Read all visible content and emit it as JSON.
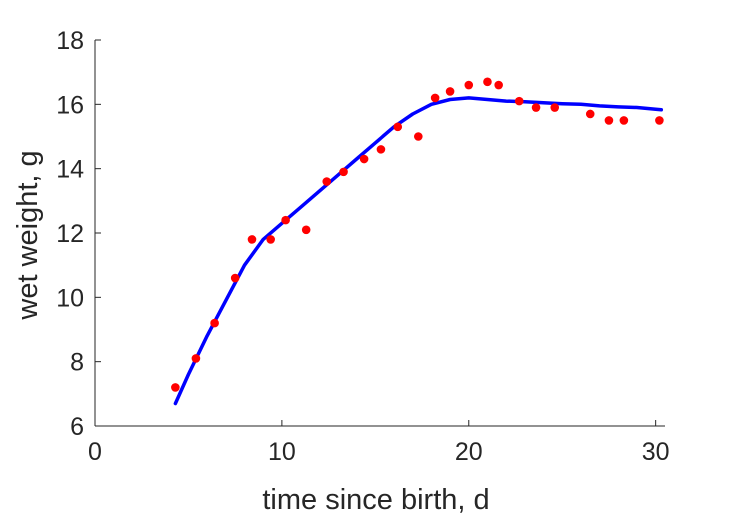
{
  "chart_data": {
    "type": "scatter",
    "xlabel": "time since birth, d",
    "ylabel": "wet weight, g",
    "xlim": [
      0,
      30.5
    ],
    "ylim": [
      6,
      18
    ],
    "xticks": [
      0,
      10,
      20,
      30
    ],
    "yticks": [
      6,
      8,
      10,
      12,
      14,
      16,
      18
    ],
    "grid": false,
    "colors": {
      "points": "#ff0000",
      "line": "#0000ff",
      "axis": "#262626"
    },
    "series": [
      {
        "kind": "points",
        "x": [
          4.3,
          5.4,
          6.4,
          7.5,
          8.4,
          9.4,
          10.2,
          11.3,
          12.4,
          13.3,
          14.4,
          15.3,
          16.2,
          17.3,
          18.2,
          19.0,
          20.0,
          21.0,
          21.6,
          22.7,
          23.6,
          24.6,
          26.5,
          27.5,
          28.3,
          30.2
        ],
        "y": [
          7.2,
          8.1,
          9.2,
          10.6,
          11.8,
          11.8,
          12.4,
          12.1,
          13.6,
          13.9,
          14.3,
          14.6,
          15.3,
          15.0,
          16.2,
          16.4,
          16.6,
          16.7,
          16.6,
          16.1,
          15.9,
          15.9,
          15.7,
          15.5,
          15.5,
          15.5
        ]
      },
      {
        "kind": "line",
        "x": [
          4.3,
          5.0,
          6.0,
          7.0,
          8.0,
          9.0,
          10.0,
          11.0,
          12.0,
          13.0,
          14.0,
          15.0,
          16.0,
          17.0,
          18.0,
          19.0,
          20.0,
          21.0,
          22.0,
          23.0,
          24.0,
          25.0,
          26.0,
          27.0,
          28.0,
          29.0,
          30.0,
          30.3
        ],
        "y": [
          6.7,
          7.6,
          8.8,
          9.9,
          11.0,
          11.8,
          12.3,
          12.8,
          13.3,
          13.8,
          14.3,
          14.8,
          15.3,
          15.7,
          16.0,
          16.15,
          16.2,
          16.15,
          16.1,
          16.08,
          16.05,
          16.02,
          16.0,
          15.95,
          15.92,
          15.9,
          15.85,
          15.83
        ]
      }
    ]
  }
}
